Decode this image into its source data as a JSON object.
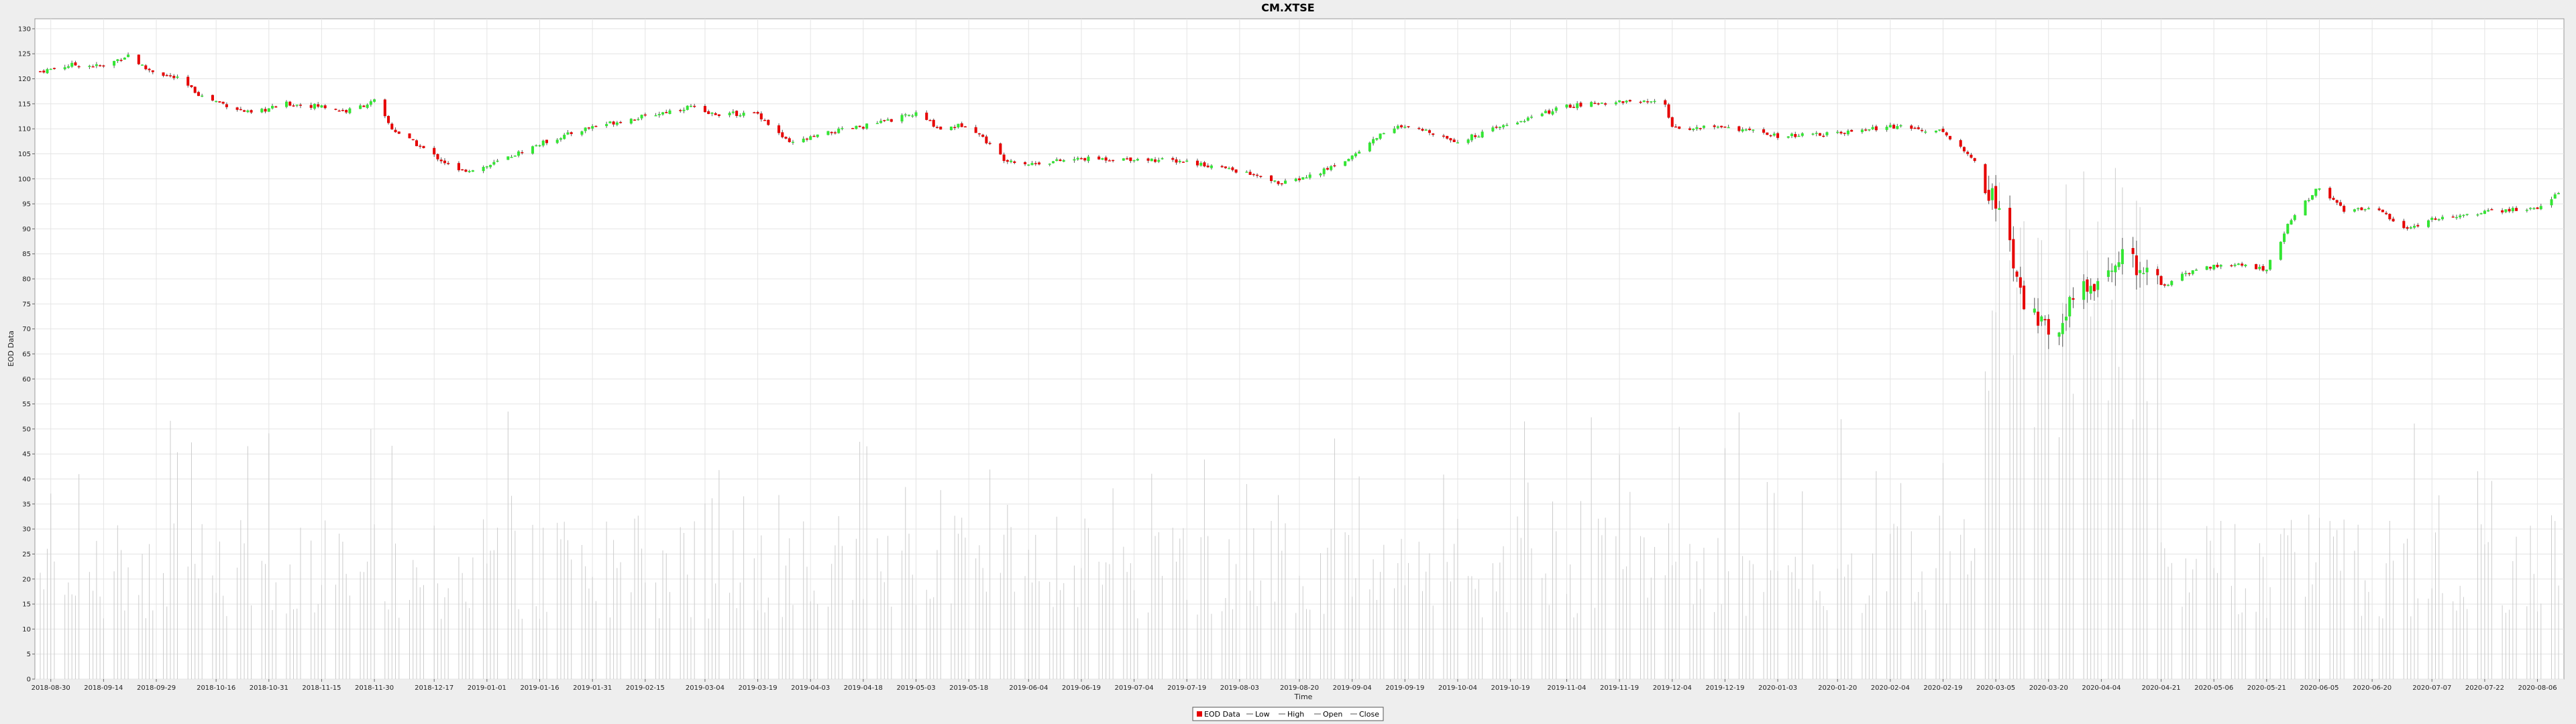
{
  "chart_data": {
    "type": "candlestick",
    "title": "CM.XTSE",
    "xlabel": "Time",
    "ylabel": "EOD Data",
    "ylim": [
      0,
      132
    ],
    "yticks": [
      0,
      5,
      10,
      15,
      20,
      25,
      30,
      35,
      40,
      45,
      50,
      55,
      60,
      65,
      70,
      75,
      80,
      85,
      90,
      95,
      100,
      105,
      110,
      115,
      120,
      125,
      130
    ],
    "date_range": [
      "2018-08-27",
      "2020-08-12"
    ],
    "grid": true,
    "x_tick_labels": [
      "2018-08-30",
      "2018-09-14",
      "2018-09-29",
      "2018-10-16",
      "2018-10-31",
      "2018-11-15",
      "2018-11-30",
      "2018-12-17",
      "2019-01-01",
      "2019-01-16",
      "2019-01-31",
      "2019-02-15",
      "2019-03-04",
      "2019-03-19",
      "2019-04-03",
      "2019-04-18",
      "2019-05-03",
      "2019-05-18",
      "2019-06-04",
      "2019-06-19",
      "2019-07-04",
      "2019-07-19",
      "2019-08-03",
      "2019-08-20",
      "2019-09-04",
      "2019-09-19",
      "2019-10-04",
      "2019-10-19",
      "2019-11-04",
      "2019-11-19",
      "2019-12-04",
      "2019-12-19",
      "2020-01-03",
      "2020-01-20",
      "2020-02-04",
      "2020-02-19",
      "2020-03-05",
      "2020-03-20",
      "2020-04-04",
      "2020-04-21",
      "2020-05-06",
      "2020-05-21",
      "2020-06-05",
      "2020-06-20",
      "2020-07-07",
      "2020-07-22",
      "2020-08-06"
    ],
    "price_anchors": [
      {
        "date": "2018-08-27",
        "value": 121.5
      },
      {
        "date": "2018-09-05",
        "value": 122.8
      },
      {
        "date": "2018-09-14",
        "value": 122.5
      },
      {
        "date": "2018-09-21",
        "value": 124.8
      },
      {
        "date": "2018-09-26",
        "value": 122.0
      },
      {
        "date": "2018-10-05",
        "value": 120.0
      },
      {
        "date": "2018-10-12",
        "value": 116.5
      },
      {
        "date": "2018-10-26",
        "value": 113.0
      },
      {
        "date": "2018-11-05",
        "value": 115.0
      },
      {
        "date": "2018-11-15",
        "value": 114.5
      },
      {
        "date": "2018-11-22",
        "value": 113.5
      },
      {
        "date": "2018-11-30",
        "value": 115.5
      },
      {
        "date": "2018-12-05",
        "value": 110.0
      },
      {
        "date": "2018-12-14",
        "value": 106.0
      },
      {
        "date": "2018-12-24",
        "value": 101.5
      },
      {
        "date": "2019-01-01",
        "value": 102.5
      },
      {
        "date": "2019-01-16",
        "value": 107.0
      },
      {
        "date": "2019-01-31",
        "value": 110.5
      },
      {
        "date": "2019-02-15",
        "value": 112.5
      },
      {
        "date": "2019-02-28",
        "value": 114.5
      },
      {
        "date": "2019-03-04",
        "value": 113.0
      },
      {
        "date": "2019-03-19",
        "value": 113.0
      },
      {
        "date": "2019-03-28",
        "value": 107.0
      },
      {
        "date": "2019-04-10",
        "value": 109.5
      },
      {
        "date": "2019-04-18",
        "value": 110.5
      },
      {
        "date": "2019-05-03",
        "value": 113.0
      },
      {
        "date": "2019-05-10",
        "value": 110.0
      },
      {
        "date": "2019-05-18",
        "value": 111.0
      },
      {
        "date": "2019-05-28",
        "value": 104.0
      },
      {
        "date": "2019-06-04",
        "value": 103.0
      },
      {
        "date": "2019-06-19",
        "value": 104.0
      },
      {
        "date": "2019-07-04",
        "value": 104.0
      },
      {
        "date": "2019-07-19",
        "value": 103.5
      },
      {
        "date": "2019-08-03",
        "value": 101.5
      },
      {
        "date": "2019-08-15",
        "value": 99.0
      },
      {
        "date": "2019-08-25",
        "value": 101.0
      },
      {
        "date": "2019-09-04",
        "value": 104.5
      },
      {
        "date": "2019-09-15",
        "value": 110.5
      },
      {
        "date": "2019-09-26",
        "value": 109.5
      },
      {
        "date": "2019-10-04",
        "value": 107.5
      },
      {
        "date": "2019-10-19",
        "value": 111.0
      },
      {
        "date": "2019-11-04",
        "value": 114.5
      },
      {
        "date": "2019-11-19",
        "value": 115.5
      },
      {
        "date": "2019-12-02",
        "value": 115.0
      },
      {
        "date": "2019-12-04",
        "value": 110.0
      },
      {
        "date": "2019-12-19",
        "value": 110.5
      },
      {
        "date": "2020-01-03",
        "value": 108.5
      },
      {
        "date": "2020-01-20",
        "value": 109.0
      },
      {
        "date": "2020-02-04",
        "value": 110.5
      },
      {
        "date": "2020-02-19",
        "value": 109.5
      },
      {
        "date": "2020-02-28",
        "value": 103.5
      },
      {
        "date": "2020-03-05",
        "value": 95.0
      },
      {
        "date": "2020-03-09",
        "value": 86.0
      },
      {
        "date": "2020-03-12",
        "value": 76.0
      },
      {
        "date": "2020-03-16",
        "value": 73.0
      },
      {
        "date": "2020-03-23",
        "value": 68.0
      },
      {
        "date": "2020-03-26",
        "value": 77.0
      },
      {
        "date": "2020-04-04",
        "value": 79.0
      },
      {
        "date": "2020-04-09",
        "value": 85.0
      },
      {
        "date": "2020-04-21",
        "value": 78.5
      },
      {
        "date": "2020-05-01",
        "value": 82.0
      },
      {
        "date": "2020-05-10",
        "value": 83.0
      },
      {
        "date": "2020-05-21",
        "value": 82.0
      },
      {
        "date": "2020-05-28",
        "value": 92.0
      },
      {
        "date": "2020-06-05",
        "value": 98.5
      },
      {
        "date": "2020-06-12",
        "value": 93.5
      },
      {
        "date": "2020-06-20",
        "value": 94.5
      },
      {
        "date": "2020-06-30",
        "value": 90.0
      },
      {
        "date": "2020-07-07",
        "value": 92.0
      },
      {
        "date": "2020-07-22",
        "value": 93.5
      },
      {
        "date": "2020-08-06",
        "value": 94.0
      },
      {
        "date": "2020-08-12",
        "value": 97.5
      }
    ],
    "volume_level_range": [
      12,
      50
    ],
    "legend": {
      "position": "bottom-center",
      "entries": [
        "EOD Data",
        "Low",
        "High",
        "Open",
        "Close"
      ]
    },
    "colors": {
      "up": "#33e633",
      "down": "#e60000",
      "wick": "#555555",
      "volume": "#cccccc",
      "grid": "#e4e4e4",
      "plot_bg": "#ffffff",
      "frame_bg": "#eeeeee"
    }
  }
}
